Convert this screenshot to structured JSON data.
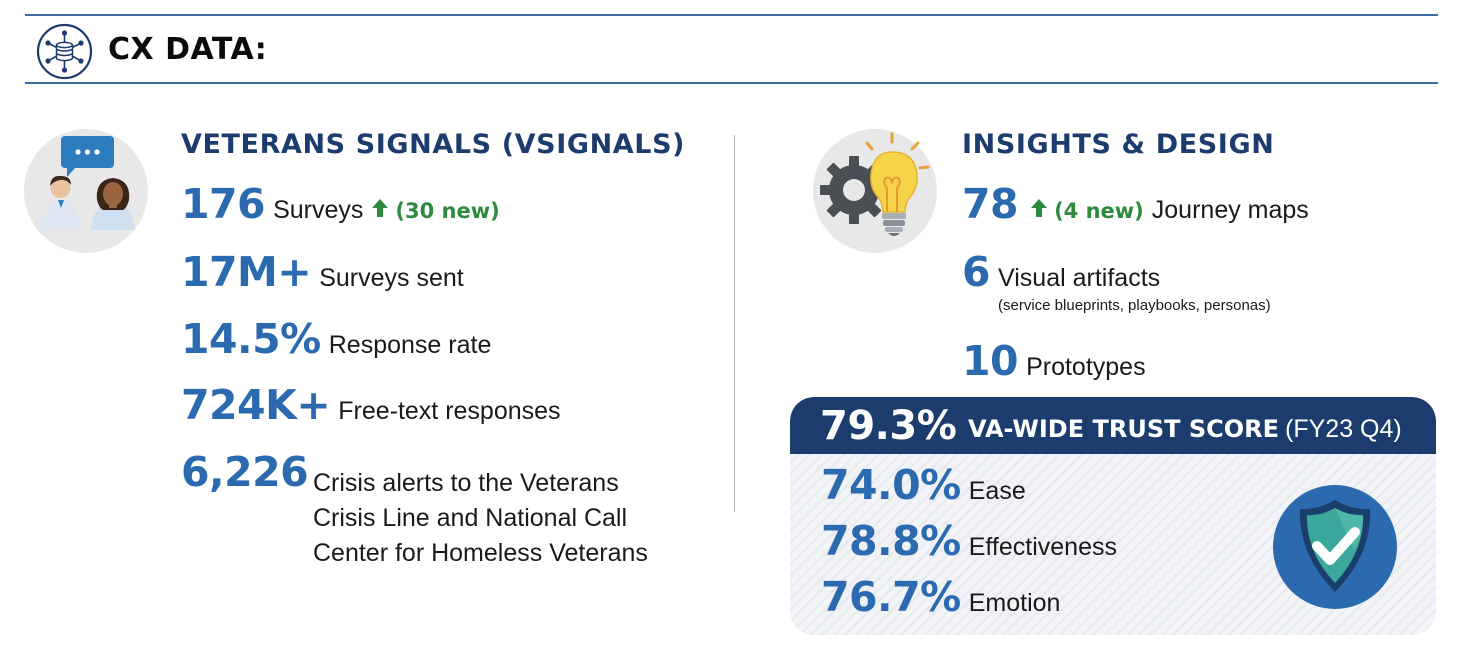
{
  "header": {
    "title": "CX DATA:",
    "icon": "database-network-icon"
  },
  "vsignals": {
    "title": "VETERANS SIGNALS (VSIGNALS)",
    "icon": "people-chat-icon",
    "stats": [
      {
        "number": "176",
        "label": "Surveys",
        "change": "(30 new)"
      },
      {
        "number": "17M+",
        "label": "Surveys sent"
      },
      {
        "number": "14.5%",
        "label": "Response rate"
      },
      {
        "number": "724K+",
        "label": "Free-text responses"
      },
      {
        "number": "6,226",
        "lines": [
          "Crisis alerts to the Veterans",
          "Crisis Line and National Call",
          "Center for Homeless Veterans"
        ]
      }
    ]
  },
  "insights": {
    "title": "INSIGHTS & DESIGN",
    "icon": "gear-lightbulb-icon",
    "stats": [
      {
        "number": "78",
        "change": "(4 new)",
        "label": "Journey maps"
      },
      {
        "number": "6",
        "label": "Visual artifacts",
        "note": "(service blueprints, playbooks, personas)"
      },
      {
        "number": "10",
        "label": "Prototypes"
      }
    ]
  },
  "trust": {
    "score": "79.3%",
    "label": "VA-WIDE TRUST SCORE",
    "period": "(FY23 Q4)",
    "metrics": [
      {
        "value": "74.0%",
        "label": "Ease"
      },
      {
        "value": "78.8%",
        "label": "Effectiveness"
      },
      {
        "value": "76.7%",
        "label": "Emotion"
      }
    ],
    "icon": "shield-check-icon"
  },
  "colors": {
    "navy": "#1d3c6e",
    "blue": "#2b6aaf",
    "green": "#2e8b3e",
    "rule": "#3a6ea5"
  }
}
